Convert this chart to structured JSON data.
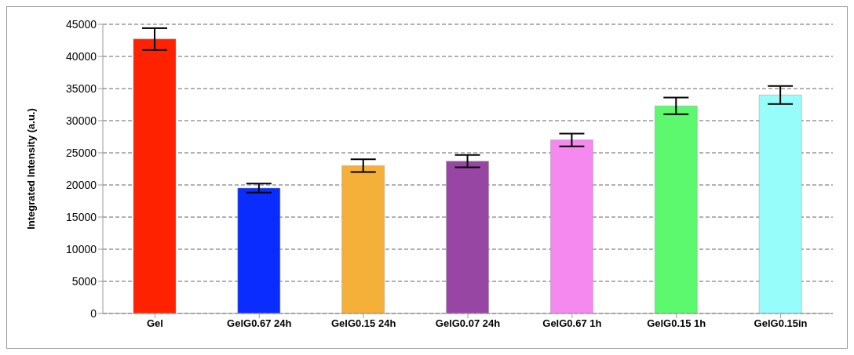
{
  "chart_data": {
    "type": "bar",
    "ylabel": "Integrated Intensity (a.u.)",
    "categories": [
      "Gel",
      "GelG0.67 24h",
      "GelG0.15 24h",
      "GelG0.07 24h",
      "GelG0.67 1h",
      "GelG0.15 1h",
      "GelG0.15in"
    ],
    "values": [
      42700,
      19500,
      23000,
      23700,
      27000,
      32300,
      34000
    ],
    "errors": [
      1700,
      700,
      1000,
      950,
      1000,
      1300,
      1400
    ],
    "colors": [
      "#ff2200",
      "#0a2cff",
      "#f5b03a",
      "#9747a3",
      "#f589f0",
      "#5cf96f",
      "#96fdfa"
    ],
    "ylim": [
      0,
      45000
    ],
    "yticks": [
      0,
      5000,
      10000,
      15000,
      20000,
      25000,
      30000,
      35000,
      40000,
      45000
    ],
    "grid": "y",
    "legend": false
  }
}
